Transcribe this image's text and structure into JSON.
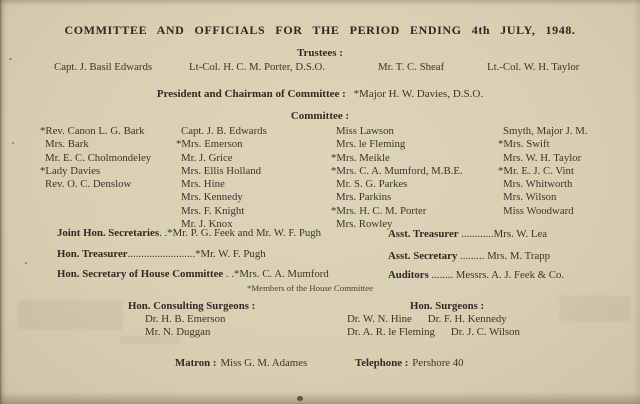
{
  "page": {
    "title": "COMMITTEE AND OFFICIALS FOR THE PERIOD ENDING 4th JULY, 1948."
  },
  "trustees": {
    "heading": "Trustees :",
    "names": [
      "Capt. J. Basil Edwards",
      "Lt-Col. H. C. M. Porter, D.S.O.",
      "Mr. T. C. Sheaf",
      "Lt.-Col. W. H. Taylor"
    ]
  },
  "president": {
    "label": "President and Chairman of Committee :",
    "value": "*Major H. W. Davies, D.S.O."
  },
  "committee": {
    "heading": "Committee :",
    "columns": [
      [
        "*Rev. Canon L. G. Bark",
        "Mrs. Bark",
        "Mr. E. C. Cholmondeley",
        "*Lady Davies",
        "Rev. O. C. Denslow"
      ],
      [
        "Capt. J. B. Edwards",
        "*Mrs. Emerson",
        "Mr. J. Grice",
        "Mrs. Ellis Holland",
        "Mrs. Hine",
        "Mrs. Kennedy",
        "Mrs. F. Knight",
        "Mr. J. Knox"
      ],
      [
        "Miss Lawson",
        "Mrs. le Fleming",
        "*Mrs. Meikle",
        "*Mrs. C. A. Mumford, M.B.E.",
        "Mr. S. G. Parkes",
        "Mrs. Parkins",
        "*Mrs. H. C. M. Porter",
        "Mrs. Rowley"
      ],
      [
        "Smyth, Major J. M.",
        "*Mrs. Swift",
        "Mrs. W. H. Taylor",
        "*Mr. E. J. C. Vint",
        "Mrs. Whitworth",
        "Mrs. Wilson",
        "Miss Woodward"
      ]
    ]
  },
  "officials": {
    "left": [
      {
        "label": "Joint Hon. Secretaries",
        "dots": ". .",
        "value": "*Mr. P. G. Feek and Mr. W. F. Pugh"
      },
      {
        "label": "Hon. Treasurer",
        "dots": ".........................",
        "value": "*Mr. W. F. Pugh"
      },
      {
        "label": "Hon. Secretary of House Committee",
        "dots": " . .",
        "value": "*Mrs. C. A. Mumford"
      }
    ],
    "right": [
      {
        "label": "Asst. Treasurer",
        "dots": " ............",
        "value": "Mrs. W. Lea"
      },
      {
        "label": "Asst. Secretary",
        "dots": " ......... ",
        "value": "Mrs. M. Trapp"
      },
      {
        "label": "Auditors",
        "dots": " ........ ",
        "value": "Messrs. A. J. Feek & Co."
      }
    ],
    "footnote": "*Members of the House Committee"
  },
  "surgeons": {
    "consulting": {
      "heading": "Hon. Consulting Surgeons :",
      "names": [
        "Dr. H. B. Emerson",
        "Mr. N. Duggan"
      ]
    },
    "honorary": {
      "heading": "Hon. Surgeons :",
      "rows": [
        {
          "a": "Dr. W. N. Hine",
          "b": "Dr. F. H. Kennedy"
        },
        {
          "a": "Dr. A. R. le Fleming",
          "b": "Dr. J. C. Wilson"
        }
      ]
    }
  },
  "footer": {
    "matron_label": "Matron :",
    "matron_value": "Miss G. M. Adames",
    "telephone_label": "Telephone :",
    "telephone_value": "Pershore 40"
  },
  "colors": {
    "paper": "#d8cfb0",
    "ink": "#3a352b"
  }
}
